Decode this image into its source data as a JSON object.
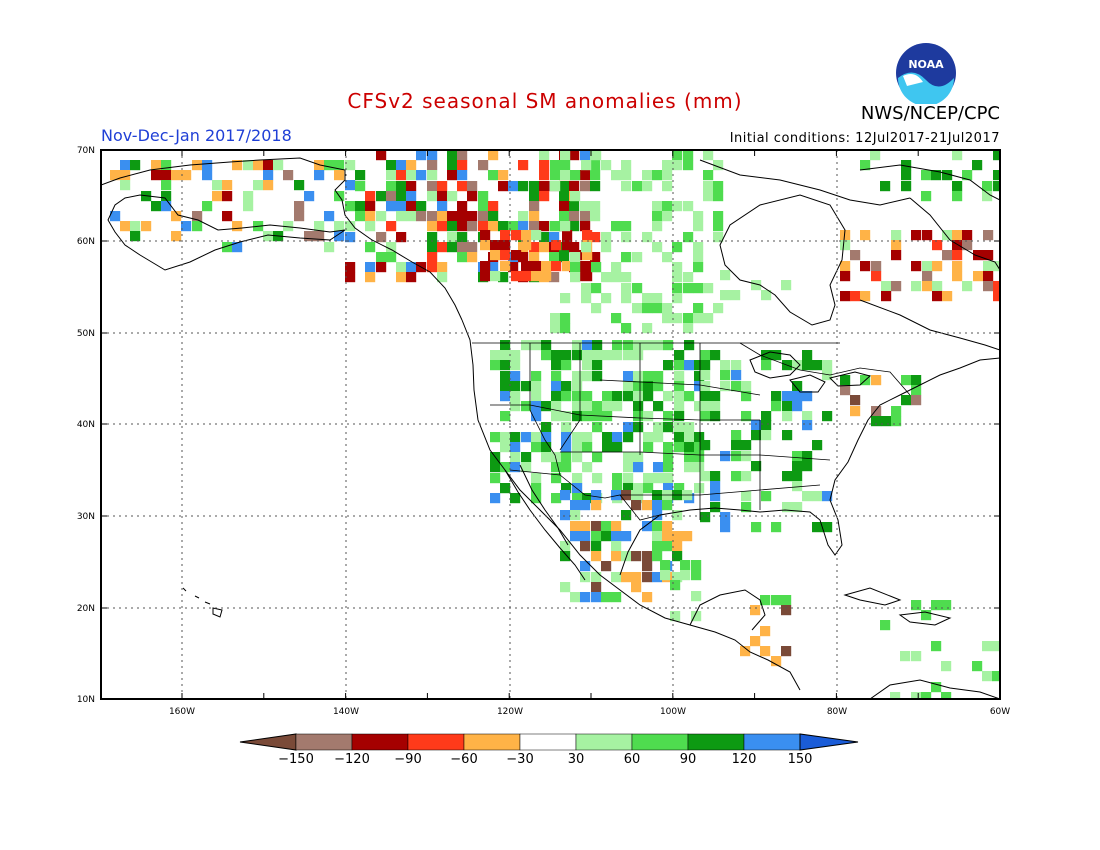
{
  "header": {
    "title": "CFSv2 seasonal SM anomalies (mm)",
    "organization": "NWS/NCEP/CPC",
    "logo_text": "NOAA",
    "period": "Nov-Dec-Jan 2017/2018",
    "initial_conditions": "Initial conditions: 12Jul2017-21Jul2017"
  },
  "map": {
    "region": "North America",
    "lat_range": [
      10,
      70
    ],
    "lon_range": [
      -172,
      -60
    ],
    "lat_labels": [
      "70N",
      "60N",
      "50N",
      "40N",
      "30N",
      "20N",
      "10N"
    ],
    "lon_labels": [
      "160W",
      "140W",
      "120W",
      "100W",
      "80W",
      "60W"
    ],
    "gridlines": true,
    "anomaly_categories": [
      {
        "range": "< -150",
        "color": "#7a4a38"
      },
      {
        "range": "-150 to -120",
        "color": "#a37a6e"
      },
      {
        "range": "-120 to -90",
        "color": "#a50000"
      },
      {
        "range": "-90 to -60",
        "color": "#ff3a1a"
      },
      {
        "range": "-60 to -30",
        "color": "#ffb347"
      },
      {
        "range": "-30 to 30",
        "color": "#ffffff"
      },
      {
        "range": "30 to 60",
        "color": "#a6f2a2"
      },
      {
        "range": "60 to 90",
        "color": "#4fdc4f"
      },
      {
        "range": "90 to 120",
        "color": "#0d9a12"
      },
      {
        "range": "120 to 150",
        "color": "#3a8ff0"
      },
      {
        "range": "> 150",
        "color": "#1a5cd8"
      }
    ]
  },
  "colorbar": {
    "labels": [
      "-150",
      "-120",
      "-90",
      "-60",
      "-30",
      "30",
      "60",
      "90",
      "120",
      "150"
    ],
    "colors": [
      "#a37a6e",
      "#a50000",
      "#ff3a1a",
      "#ffb347",
      "#ffffff",
      "#a6f2a2",
      "#4fdc4f",
      "#0d9a12",
      "#3a8ff0"
    ],
    "low_end_color": "#7a4a38",
    "high_end_color": "#1a5cd8"
  }
}
